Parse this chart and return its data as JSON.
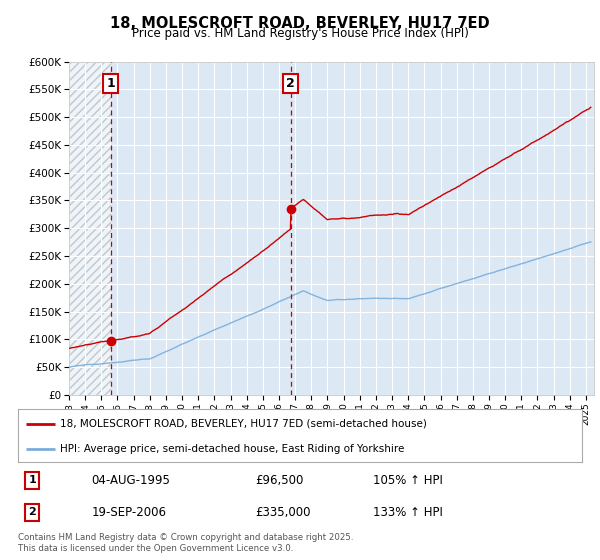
{
  "title": "18, MOLESCROFT ROAD, BEVERLEY, HU17 7ED",
  "subtitle": "Price paid vs. HM Land Registry's House Price Index (HPI)",
  "ylabel_values": [
    "£0",
    "£50K",
    "£100K",
    "£150K",
    "£200K",
    "£250K",
    "£300K",
    "£350K",
    "£400K",
    "£450K",
    "£500K",
    "£550K",
    "£600K"
  ],
  "yticks": [
    0,
    50000,
    100000,
    150000,
    200000,
    250000,
    300000,
    350000,
    400000,
    450000,
    500000,
    550000,
    600000
  ],
  "ylim": [
    0,
    600000
  ],
  "xlim_start": 1993.0,
  "xlim_end": 2025.5,
  "background_color": "#ffffff",
  "plot_bg_color": "#dce9f5",
  "grid_color": "#ffffff",
  "hpi_line_color": "#7aaddb",
  "price_line_color": "#cc0000",
  "dashed_vline_color": "#cc0000",
  "sale1_x": 1995.59,
  "sale1_y": 96500,
  "sale1_label": "1",
  "sale1_date": "04-AUG-1995",
  "sale1_price": "£96,500",
  "sale1_hpi": "105% ↑ HPI",
  "sale2_x": 2006.72,
  "sale2_y": 335000,
  "sale2_label": "2",
  "sale2_date": "19-SEP-2006",
  "sale2_price": "£335,000",
  "sale2_hpi": "133% ↑ HPI",
  "legend_line1": "18, MOLESCROFT ROAD, BEVERLEY, HU17 7ED (semi-detached house)",
  "legend_line2": "HPI: Average price, semi-detached house, East Riding of Yorkshire",
  "footer": "Contains HM Land Registry data © Crown copyright and database right 2025.\nThis data is licensed under the Open Government Licence v3.0.",
  "hatch_color": "#aaaaaa",
  "sale_box_color": "#cc0000"
}
